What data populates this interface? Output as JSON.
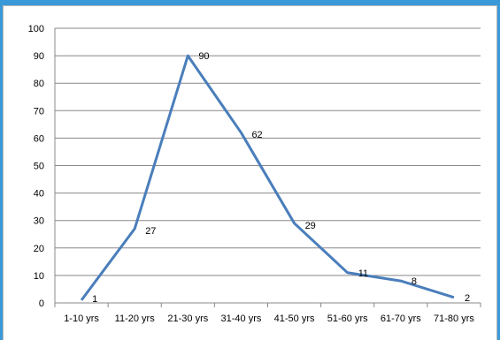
{
  "chart_data": {
    "type": "line",
    "categories": [
      "1-10 yrs",
      "11-20 yrs",
      "21-30 yrs",
      "31-40 yrs",
      "41-50 yrs",
      "51-60 yrs",
      "61-70 yrs",
      "71-80 yrs"
    ],
    "series": [
      {
        "values": [
          1,
          27,
          90,
          62,
          29,
          11,
          8,
          2
        ],
        "color": "#4a7ebb"
      }
    ],
    "data_labels": [
      "1",
      "27",
      "90",
      "62",
      "29",
      "11",
      "8",
      "2"
    ],
    "y_ticks": [
      "0",
      "10",
      "20",
      "30",
      "40",
      "50",
      "60",
      "70",
      "80",
      "90",
      "100"
    ],
    "ylim": [
      0,
      100
    ],
    "grid": true,
    "legend": false,
    "colors": {
      "line": "#4a7ebb",
      "grid": "#888888",
      "frame": "#3a9ad9"
    }
  }
}
